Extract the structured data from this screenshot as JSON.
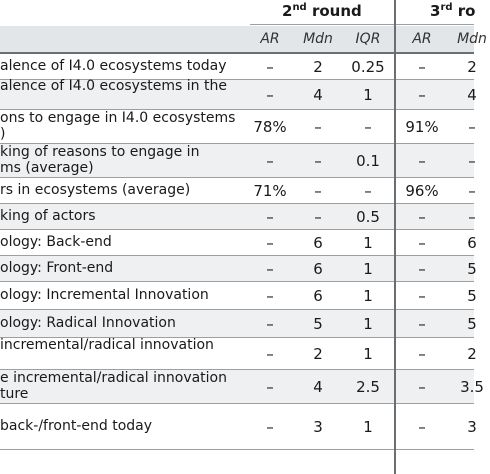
{
  "header": {
    "round2": {
      "num": "2",
      "sup": "nd",
      "word": "round"
    },
    "round3": {
      "num": "3",
      "sup": "rd",
      "word": "ro"
    },
    "columns": [
      "AR",
      "Mdn",
      "IQR",
      "AR",
      "Mdn"
    ]
  },
  "rows": [
    {
      "label": [
        "alence of I4.0 ecosystems today"
      ],
      "values": [
        "–",
        "2",
        "0.25",
        "–",
        "2"
      ]
    },
    {
      "label": [
        "alence of I4.0 ecosystems in the",
        ""
      ],
      "values": [
        "–",
        "4",
        "1",
        "–",
        "4"
      ]
    },
    {
      "label": [
        "ons to engage in I4.0 ecosystems",
        ")"
      ],
      "values": [
        "78%",
        "–",
        "–",
        "91%",
        "–"
      ]
    },
    {
      "label": [
        "king of reasons to engage in",
        "ms (average)"
      ],
      "values": [
        "–",
        "–",
        "0.1",
        "–",
        "–"
      ]
    },
    {
      "label": [
        "rs in ecosystems (average)"
      ],
      "values": [
        "71%",
        "–",
        "–",
        "96%",
        "–"
      ]
    },
    {
      "label": [
        "king of actors"
      ],
      "values": [
        "–",
        "–",
        "0.5",
        "–",
        "–"
      ]
    },
    {
      "label": [
        "ology: Back-end"
      ],
      "values": [
        "–",
        "6",
        "1",
        "–",
        "6"
      ]
    },
    {
      "label": [
        "ology: Front-end"
      ],
      "values": [
        "–",
        "6",
        "1",
        "–",
        "5"
      ]
    },
    {
      "label": [
        "ology: Incremental Innovation"
      ],
      "values": [
        "–",
        "6",
        "1",
        "–",
        "5"
      ]
    },
    {
      "label": [
        "ology: Radical Innovation"
      ],
      "values": [
        "–",
        "5",
        "1",
        "–",
        "5"
      ]
    },
    {
      "label": [
        " incremental/radical innovation",
        ""
      ],
      "values": [
        "–",
        "2",
        "1",
        "–",
        "2"
      ]
    },
    {
      "label": [
        "e incremental/radical innovation",
        "ture"
      ],
      "values": [
        "–",
        "4",
        "2.5",
        "–",
        "3.5"
      ]
    },
    {
      "label": [
        "back-/front-end today"
      ],
      "values": [
        "–",
        "3",
        "1",
        "–",
        "3"
      ]
    }
  ]
}
